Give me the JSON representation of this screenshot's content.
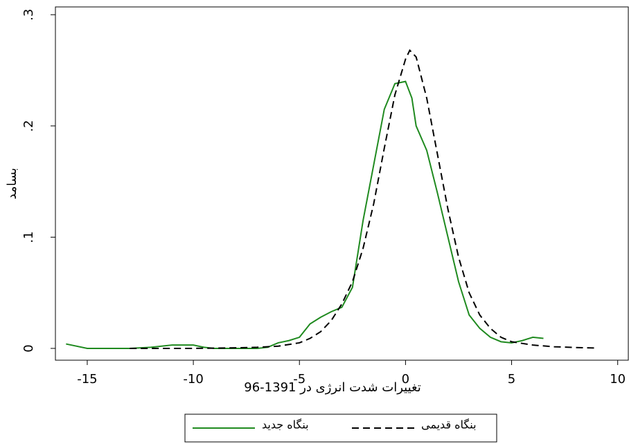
{
  "chart_data": {
    "type": "line",
    "xlabel": "تغییرات شدت انرژی در 1391-96",
    "ylabel": "بسامد",
    "xlim": [
      -16.5,
      10.5
    ],
    "ylim": [
      -0.0106,
      0.307
    ],
    "xticks": [
      -15,
      -10,
      -5,
      0,
      5,
      10
    ],
    "yticks": [
      0,
      {
        "value": 0.1,
        "label": ".1"
      },
      {
        "value": 0.2,
        "label": ".2"
      },
      {
        "value": 0.3,
        "label": ".3"
      }
    ],
    "series": [
      {
        "name": "بنگاه جدید",
        "color": "#1f8a1f",
        "dash": false,
        "x": [
          -16,
          -15,
          -14,
          -13,
          -12,
          -11,
          -10.5,
          -10,
          -9.5,
          -9,
          -8,
          -7,
          -6.5,
          -6,
          -5.5,
          -5,
          -4.5,
          -4,
          -3.5,
          -3,
          -2.5,
          -2,
          -1.5,
          -1,
          -0.5,
          0,
          0.3,
          0.5,
          1,
          1.5,
          2,
          2.5,
          3,
          3.5,
          4,
          4.5,
          5,
          5.5,
          6,
          6.5
        ],
        "values": [
          0.004,
          0,
          0,
          0,
          0.001,
          0.003,
          0.003,
          0.003,
          0.001,
          0,
          0,
          0,
          0.001,
          0.005,
          0.007,
          0.01,
          0.022,
          0.028,
          0.033,
          0.037,
          0.055,
          0.115,
          0.165,
          0.215,
          0.238,
          0.24,
          0.225,
          0.2,
          0.178,
          0.14,
          0.1,
          0.06,
          0.03,
          0.018,
          0.01,
          0.006,
          0.005,
          0.007,
          0.01,
          0.009
        ]
      },
      {
        "name": "بنگاه قدیمی",
        "color": "#000000",
        "dash": true,
        "x": [
          -13,
          -12,
          -10,
          -8,
          -7,
          -6,
          -5,
          -4.5,
          -4,
          -3.5,
          -3,
          -2.5,
          -2,
          -1.5,
          -1,
          -0.5,
          0,
          0.2,
          0.5,
          1,
          1.5,
          2,
          2.5,
          3,
          3.5,
          4,
          4.5,
          5,
          6,
          7,
          8,
          9
        ],
        "values": [
          0,
          0,
          0,
          0.0005,
          0.001,
          0.002,
          0.005,
          0.009,
          0.015,
          0.025,
          0.04,
          0.06,
          0.09,
          0.13,
          0.18,
          0.228,
          0.26,
          0.268,
          0.262,
          0.225,
          0.175,
          0.125,
          0.082,
          0.05,
          0.03,
          0.018,
          0.01,
          0.006,
          0.003,
          0.0015,
          0.0008,
          0.0003
        ]
      }
    ]
  }
}
